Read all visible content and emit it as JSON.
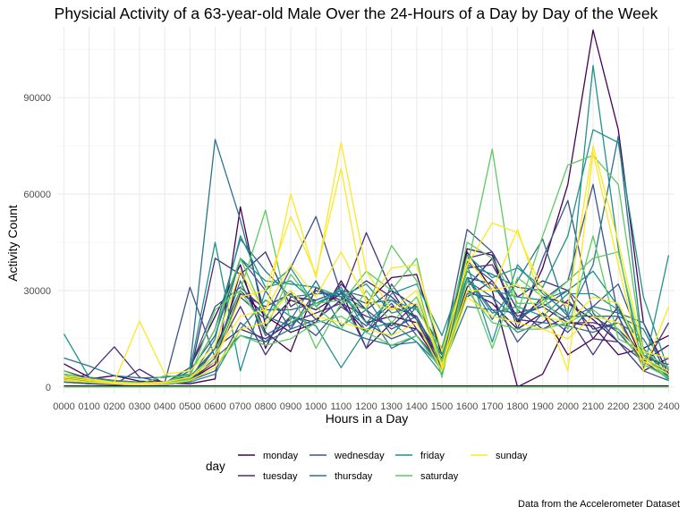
{
  "chart_data": {
    "type": "line",
    "title": "Physicial Activity of a 63-year-old Male Over the 24-Hours of a Day by Day of the Week",
    "xlabel": "Hours in a Day",
    "ylabel": "Activity Count",
    "caption": "Data from the Accelerometer Dataset",
    "legend_title": "day",
    "legend_position": "bottom",
    "grid": true,
    "xlim": [
      0,
      24
    ],
    "ylim": [
      -2000,
      112000
    ],
    "x_tick_labels": [
      "0000",
      "0100",
      "0200",
      "0300",
      "0400",
      "0500",
      "0600",
      "0700",
      "0800",
      "0900",
      "1000",
      "1100",
      "1200",
      "1300",
      "1400",
      "1500",
      "1600",
      "1700",
      "1800",
      "1900",
      "2000",
      "2100",
      "2200",
      "2300",
      "2400"
    ],
    "y_ticks": [
      0,
      30000,
      60000,
      90000
    ],
    "y_tick_labels": [
      "0",
      "30000",
      "60000",
      "90000"
    ],
    "x": [
      0,
      1,
      2,
      3,
      4,
      5,
      6,
      7,
      8,
      9,
      10,
      11,
      12,
      13,
      14,
      15,
      16,
      17,
      18,
      19,
      20,
      21,
      22,
      23,
      24
    ],
    "series": [
      {
        "name": "monday",
        "color": "#440154",
        "lines": [
          [
            7200,
            3000,
            2000,
            1500,
            1200,
            1000,
            2500,
            56000,
            19000,
            27000,
            24000,
            29000,
            26000,
            34000,
            35000,
            10000,
            43000,
            41000,
            20000,
            37000,
            63000,
            111000,
            80000,
            20000,
            4000
          ],
          [
            5000,
            2500,
            3500,
            1800,
            1500,
            3000,
            12000,
            30000,
            22000,
            17000,
            20000,
            33000,
            20000,
            22000,
            20000,
            8000,
            42000,
            30000,
            0,
            4000,
            20000,
            19000,
            10000,
            12000,
            16000
          ],
          [
            4000,
            1500,
            1000,
            800,
            1200,
            6000,
            22000,
            38000,
            12000,
            28000,
            27000,
            30000,
            12000,
            20000,
            18000,
            6000,
            30000,
            26000,
            18000,
            23000,
            10000,
            15000,
            25000,
            8000,
            13000
          ],
          [
            300,
            300,
            300,
            300,
            300,
            300,
            300,
            300,
            300,
            300,
            300,
            300,
            300,
            300,
            300,
            300,
            300,
            300,
            300,
            300,
            300,
            300,
            300,
            300,
            300
          ],
          [
            3000,
            2000,
            1500,
            1000,
            1000,
            2000,
            7000,
            36000,
            17000,
            11000,
            31000,
            26000,
            17000,
            25000,
            22000,
            7000,
            31000,
            40000,
            20000,
            28000,
            26000,
            21000,
            14000,
            5000,
            9000
          ]
        ]
      },
      {
        "name": "tuesday",
        "color": "#472c7a",
        "lines": [
          [
            2000,
            4000,
            12500,
            3000,
            1500,
            3500,
            40000,
            35000,
            42000,
            25000,
            30000,
            27000,
            48000,
            30000,
            25000,
            12000,
            40000,
            42000,
            28000,
            33000,
            30000,
            15000,
            14000,
            8000,
            4000
          ],
          [
            1500,
            1000,
            800,
            5500,
            1000,
            2000,
            8000,
            29000,
            25000,
            29000,
            21000,
            27000,
            33000,
            28000,
            21000,
            6000,
            37000,
            38000,
            24000,
            18000,
            22000,
            10000,
            22000,
            6000,
            20000
          ],
          [
            3000,
            2000,
            1200,
            1000,
            800,
            1500,
            12000,
            18000,
            15000,
            20000,
            23000,
            26000,
            22000,
            19000,
            26000,
            8000,
            28000,
            33000,
            22000,
            25000,
            20000,
            20000,
            18000,
            10000,
            6000
          ],
          [
            2500,
            1500,
            1000,
            800,
            1000,
            3000,
            10000,
            25000,
            10000,
            22000,
            20000,
            32000,
            24000,
            30000,
            18000,
            9000,
            34000,
            32000,
            21000,
            20000,
            27000,
            18000,
            20000,
            9000,
            7000
          ]
        ]
      },
      {
        "name": "wednesday",
        "color": "#3b528b",
        "lines": [
          [
            2800,
            1200,
            800,
            1500,
            1400,
            31000,
            9000,
            28000,
            21000,
            37000,
            53000,
            29000,
            20000,
            15000,
            18000,
            10000,
            49000,
            42000,
            18000,
            40000,
            58000,
            23000,
            14000,
            5000,
            2000
          ],
          [
            2000,
            1500,
            1000,
            1200,
            1000,
            5000,
            16000,
            40000,
            30000,
            18000,
            30000,
            28000,
            12000,
            32000,
            21000,
            5000,
            39000,
            33000,
            21000,
            27000,
            33000,
            63000,
            22000,
            7000,
            3000
          ],
          [
            1500,
            1000,
            700,
            1000,
            900,
            2000,
            5000,
            20000,
            14000,
            22000,
            16000,
            25000,
            19000,
            26000,
            16000,
            7000,
            29000,
            28000,
            14000,
            23000,
            17000,
            25000,
            32000,
            12000,
            3000
          ],
          [
            3000,
            2500,
            1800,
            1200,
            1100,
            6000,
            25000,
            31000,
            24000,
            24000,
            26000,
            29000,
            24000,
            18000,
            22000,
            8000,
            34000,
            24000,
            23000,
            25000,
            30000,
            22000,
            17000,
            8000,
            2500
          ]
        ]
      },
      {
        "name": "thursday",
        "color": "#2c728e",
        "lines": [
          [
            3000,
            2000,
            1200,
            1500,
            1000,
            6000,
            77000,
            52000,
            22000,
            19000,
            27000,
            30000,
            28000,
            16000,
            25000,
            12000,
            34000,
            21000,
            33000,
            46000,
            22000,
            38000,
            78000,
            10000,
            3000
          ],
          [
            2500,
            1800,
            1200,
            1000,
            900,
            3000,
            10000,
            33000,
            16000,
            21000,
            33000,
            19000,
            24000,
            12000,
            16000,
            6000,
            33000,
            28000,
            21000,
            26000,
            21000,
            25000,
            23000,
            20000,
            2000
          ],
          [
            1500,
            1200,
            900,
            800,
            800,
            1800,
            9000,
            16000,
            14000,
            18000,
            21000,
            18000,
            15000,
            13000,
            14000,
            6000,
            25000,
            24000,
            17000,
            20000,
            19000,
            17000,
            20000,
            15000,
            2000
          ],
          [
            9000,
            6500,
            3500,
            2800,
            3000,
            4000,
            18000,
            46000,
            36000,
            28000,
            29000,
            29000,
            26000,
            27000,
            21000,
            10000,
            38000,
            35000,
            31000,
            30000,
            22000,
            22000,
            22000,
            18000,
            3000
          ]
        ]
      },
      {
        "name": "friday",
        "color": "#21918c",
        "lines": [
          [
            16500,
            3000,
            2000,
            1500,
            1000,
            5000,
            45000,
            5000,
            30000,
            37000,
            25000,
            31000,
            17000,
            29000,
            32000,
            16000,
            38000,
            14000,
            38000,
            29000,
            23000,
            100000,
            43000,
            5000,
            41000
          ],
          [
            4000,
            2500,
            1500,
            1200,
            1000,
            2000,
            15000,
            47000,
            31000,
            33000,
            26000,
            30000,
            20000,
            27000,
            24000,
            12000,
            41000,
            34000,
            37000,
            31000,
            47000,
            80000,
            76000,
            28000,
            5000
          ],
          [
            2000,
            1500,
            1000,
            800,
            800,
            1500,
            4000,
            18000,
            27000,
            22000,
            19000,
            6000,
            18000,
            20000,
            14000,
            4000,
            34000,
            23000,
            25000,
            22000,
            29000,
            29000,
            24000,
            10000,
            2000
          ],
          [
            3000,
            2000,
            1500,
            1000,
            1000,
            2500,
            12000,
            40000,
            33000,
            32000,
            31000,
            28000,
            32000,
            23000,
            25000,
            10000,
            36000,
            30000,
            28000,
            27000,
            30000,
            36000,
            25000,
            12000,
            2500
          ]
        ]
      },
      {
        "name": "saturday",
        "color": "#5ec962",
        "lines": [
          [
            5000,
            2000,
            1500,
            1000,
            3500,
            3000,
            24000,
            30000,
            55000,
            20000,
            26000,
            27000,
            24000,
            44000,
            33000,
            3000,
            37000,
            74000,
            23000,
            47000,
            69000,
            72000,
            63000,
            10000,
            2000
          ],
          [
            0,
            0,
            0,
            0,
            0,
            0,
            0,
            0,
            0,
            0,
            0,
            0,
            0,
            0,
            0,
            0,
            0,
            0,
            0,
            0,
            0,
            0,
            0,
            0,
            0
          ],
          [
            4000,
            2500,
            1500,
            1200,
            1500,
            4000,
            18000,
            40000,
            22000,
            30000,
            12000,
            26000,
            36000,
            30000,
            40000,
            6000,
            33000,
            12000,
            34000,
            28000,
            18000,
            47000,
            15000,
            11000,
            6000
          ],
          [
            3000,
            2000,
            1200,
            1000,
            1200,
            2500,
            10000,
            30000,
            18000,
            35000,
            25000,
            18000,
            30000,
            20000,
            28000,
            8000,
            45000,
            40000,
            26000,
            26000,
            33000,
            40000,
            42000,
            9000,
            4000
          ],
          [
            2000,
            1500,
            1000,
            800,
            1000,
            2000,
            6000,
            16000,
            13000,
            15000,
            20000,
            22000,
            17000,
            13000,
            16000,
            5000,
            30000,
            20000,
            18000,
            18000,
            20000,
            24000,
            18000,
            7000,
            3000
          ]
        ]
      },
      {
        "name": "sunday",
        "color": "#fde725",
        "lines": [
          [
            3000,
            2000,
            1500,
            20500,
            4000,
            5000,
            13000,
            36000,
            23000,
            60000,
            34000,
            76000,
            36000,
            24000,
            30000,
            6000,
            40000,
            30000,
            49000,
            26000,
            5000,
            73000,
            38000,
            5000,
            25000
          ],
          [
            2500,
            1500,
            1200,
            1000,
            1500,
            3000,
            8000,
            28000,
            30000,
            53000,
            35000,
            68000,
            25000,
            37000,
            38000,
            11000,
            38000,
            51000,
            48000,
            30000,
            25000,
            75000,
            45000,
            11000,
            9000
          ],
          [
            2000,
            1500,
            1000,
            800,
            1000,
            2000,
            6000,
            18000,
            20000,
            30000,
            22000,
            20000,
            18000,
            16000,
            20000,
            5000,
            28000,
            22000,
            20000,
            18000,
            15000,
            22000,
            20000,
            8000,
            4000
          ],
          [
            3500,
            2500,
            1500,
            1200,
            1500,
            3000,
            10000,
            22000,
            24000,
            38000,
            28000,
            42000,
            27000,
            24000,
            26000,
            7000,
            30000,
            30000,
            32000,
            22000,
            20000,
            28000,
            26000,
            9000,
            5000
          ]
        ]
      }
    ]
  }
}
